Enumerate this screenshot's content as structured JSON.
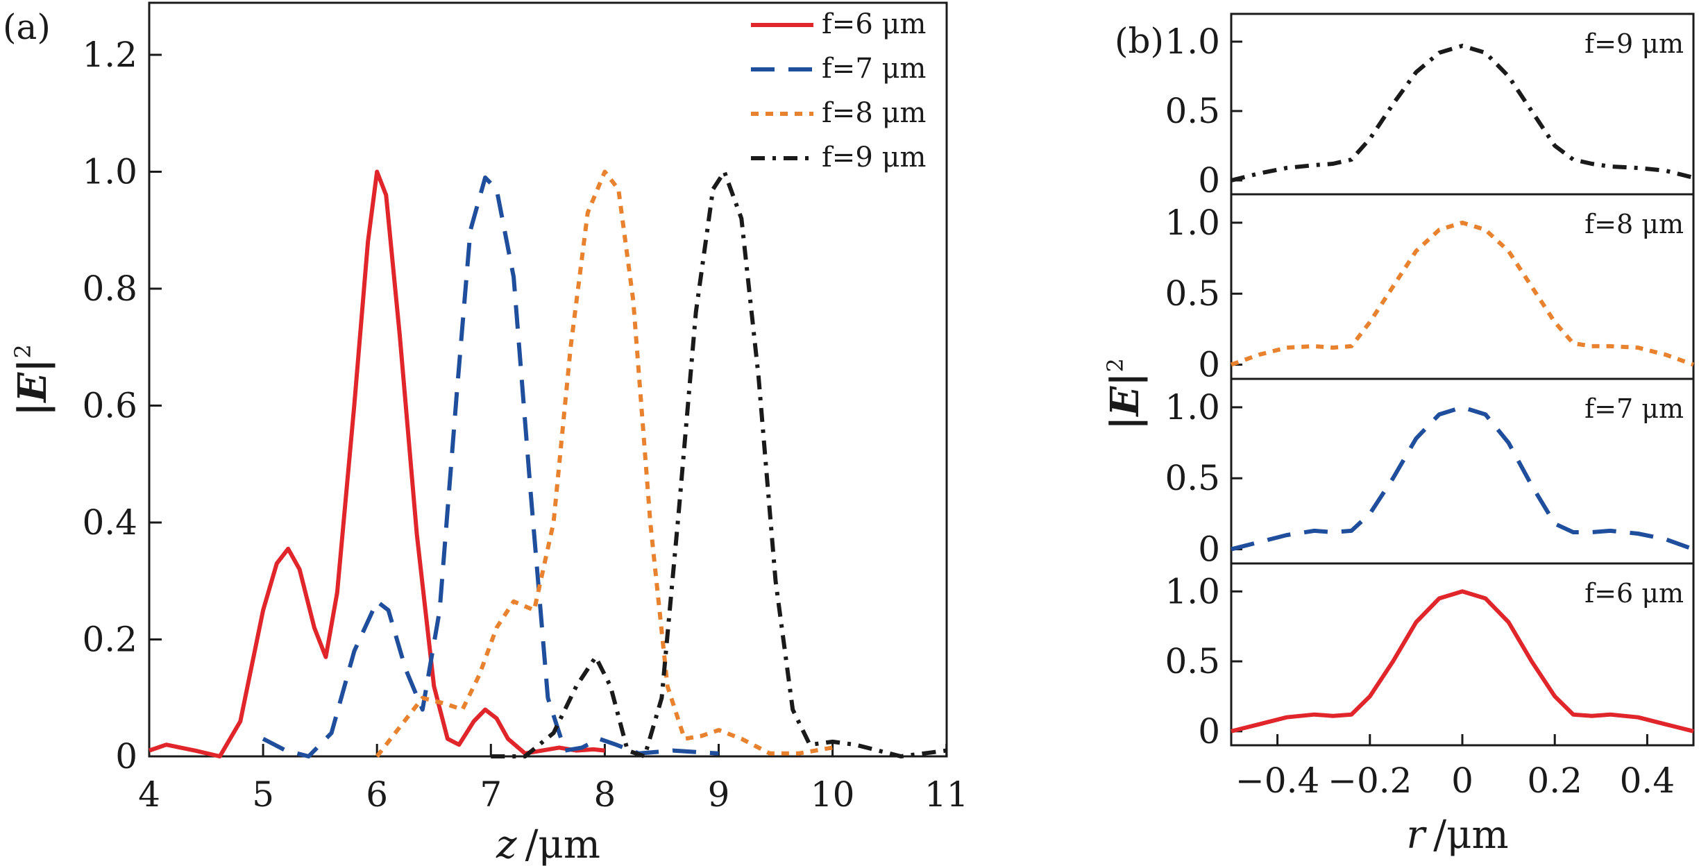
{
  "chart_data": [
    {
      "panel_label": "(a)",
      "type": "line",
      "xlabel_var": "z",
      "xlabel_unit": "/μm",
      "ylabel_main": "|E|",
      "ylabel_sup": "2",
      "xlim": [
        4,
        11
      ],
      "ylim": [
        0,
        1.3
      ],
      "xticks": [
        "4",
        "5",
        "6",
        "7",
        "8",
        "9",
        "10",
        "11"
      ],
      "yticks": [
        "0",
        "0.2",
        "0.4",
        "0.6",
        "0.8",
        "1.0",
        "1.2"
      ],
      "legend_position": "top-right",
      "series": [
        {
          "name": "f=6 μm",
          "color": "#e0262b",
          "style": "solid",
          "x": [
            4.0,
            4.15,
            4.4,
            4.62,
            4.8,
            5.0,
            5.12,
            5.22,
            5.32,
            5.45,
            5.55,
            5.65,
            5.8,
            5.92,
            6.0,
            6.08,
            6.2,
            6.35,
            6.5,
            6.62,
            6.72,
            6.85,
            6.95,
            7.05,
            7.15,
            7.3,
            7.45,
            7.6,
            7.75,
            7.9,
            8.0
          ],
          "y": [
            0.01,
            0.02,
            0.01,
            0.0,
            0.06,
            0.25,
            0.33,
            0.355,
            0.32,
            0.22,
            0.17,
            0.28,
            0.6,
            0.88,
            1.0,
            0.96,
            0.72,
            0.38,
            0.12,
            0.03,
            0.02,
            0.06,
            0.08,
            0.065,
            0.03,
            0.005,
            0.01,
            0.015,
            0.01,
            0.012,
            0.01
          ]
        },
        {
          "name": "f=7 μm",
          "color": "#1f4e9c",
          "style": "dash",
          "x": [
            5.0,
            5.2,
            5.4,
            5.6,
            5.8,
            6.0,
            6.1,
            6.25,
            6.4,
            6.55,
            6.7,
            6.82,
            6.95,
            7.05,
            7.2,
            7.35,
            7.5,
            7.65,
            7.8,
            7.95,
            8.1,
            8.3,
            8.6,
            9.0
          ],
          "y": [
            0.03,
            0.01,
            0.0,
            0.04,
            0.18,
            0.265,
            0.25,
            0.15,
            0.08,
            0.25,
            0.62,
            0.9,
            0.99,
            0.97,
            0.82,
            0.45,
            0.1,
            0.01,
            0.015,
            0.03,
            0.02,
            0.005,
            0.01,
            0.005
          ]
        },
        {
          "name": "f=8 μm",
          "color": "#e9822e",
          "style": "dot",
          "x": [
            6.0,
            6.2,
            6.4,
            6.6,
            6.75,
            6.9,
            7.05,
            7.2,
            7.38,
            7.55,
            7.7,
            7.85,
            8.0,
            8.12,
            8.25,
            8.4,
            8.55,
            8.7,
            8.85,
            9.0,
            9.2,
            9.45,
            9.7,
            10.0
          ],
          "y": [
            0.0,
            0.05,
            0.1,
            0.09,
            0.08,
            0.14,
            0.22,
            0.265,
            0.25,
            0.4,
            0.7,
            0.93,
            1.0,
            0.97,
            0.78,
            0.4,
            0.12,
            0.03,
            0.035,
            0.045,
            0.03,
            0.005,
            0.005,
            0.015
          ]
        },
        {
          "name": "f=9 μm",
          "color": "#1a1a1a",
          "style": "dashdot",
          "x": [
            7.0,
            7.3,
            7.55,
            7.75,
            7.92,
            8.05,
            8.2,
            8.35,
            8.5,
            8.65,
            8.8,
            8.95,
            9.05,
            9.2,
            9.35,
            9.5,
            9.65,
            9.8,
            10.0,
            10.2,
            10.4,
            10.6,
            10.8,
            11.0
          ],
          "y": [
            0.0,
            0.0,
            0.04,
            0.12,
            0.17,
            0.12,
            0.01,
            0.0,
            0.1,
            0.42,
            0.76,
            0.97,
            1.0,
            0.92,
            0.65,
            0.3,
            0.08,
            0.02,
            0.025,
            0.02,
            0.01,
            0.0,
            0.005,
            0.01
          ]
        }
      ]
    },
    {
      "panel_label": "(b)",
      "type": "line",
      "xlabel_var": "r",
      "xlabel_unit": "/μm",
      "ylabel_main": "|E|",
      "ylabel_sup": "2",
      "xlim": [
        -0.5,
        0.5
      ],
      "xticks": [
        "−0.4",
        "−0.2",
        "0",
        "0.2",
        "0.4"
      ],
      "subplots": [
        {
          "label": "f=9 μm",
          "color": "#1a1a1a",
          "style": "dashdot",
          "ylim": [
            -0.1,
            1.2
          ],
          "yticks": [
            "0",
            "0.5",
            "1.0"
          ],
          "x": [
            -0.5,
            -0.44,
            -0.38,
            -0.32,
            -0.28,
            -0.24,
            -0.2,
            -0.15,
            -0.1,
            -0.05,
            0.0,
            0.05,
            0.1,
            0.15,
            0.2,
            0.24,
            0.28,
            0.32,
            0.38,
            0.44,
            0.5
          ],
          "y": [
            0.0,
            0.05,
            0.09,
            0.11,
            0.12,
            0.15,
            0.3,
            0.55,
            0.78,
            0.92,
            0.97,
            0.92,
            0.75,
            0.5,
            0.25,
            0.15,
            0.12,
            0.1,
            0.09,
            0.07,
            0.02
          ]
        },
        {
          "label": "f=8 μm",
          "color": "#e9822e",
          "style": "dot",
          "ylim": [
            -0.1,
            1.2
          ],
          "yticks": [
            "0",
            "0.5",
            "1.0"
          ],
          "x": [
            -0.5,
            -0.44,
            -0.38,
            -0.32,
            -0.28,
            -0.24,
            -0.2,
            -0.15,
            -0.1,
            -0.05,
            0.0,
            0.05,
            0.1,
            0.15,
            0.2,
            0.24,
            0.28,
            0.32,
            0.38,
            0.44,
            0.5
          ],
          "y": [
            0.0,
            0.07,
            0.12,
            0.13,
            0.12,
            0.13,
            0.3,
            0.55,
            0.8,
            0.95,
            1.0,
            0.95,
            0.8,
            0.55,
            0.3,
            0.15,
            0.13,
            0.13,
            0.12,
            0.07,
            0.0
          ]
        },
        {
          "label": "f=7 μm",
          "color": "#1f4e9c",
          "style": "dash",
          "ylim": [
            -0.1,
            1.2
          ],
          "yticks": [
            "0",
            "0.5",
            "1.0"
          ],
          "x": [
            -0.5,
            -0.44,
            -0.38,
            -0.32,
            -0.28,
            -0.24,
            -0.2,
            -0.15,
            -0.1,
            -0.05,
            0.0,
            0.05,
            0.1,
            0.15,
            0.2,
            0.24,
            0.28,
            0.32,
            0.38,
            0.44,
            0.5
          ],
          "y": [
            0.0,
            0.05,
            0.1,
            0.13,
            0.12,
            0.13,
            0.25,
            0.5,
            0.78,
            0.95,
            1.0,
            0.95,
            0.75,
            0.45,
            0.18,
            0.12,
            0.12,
            0.13,
            0.11,
            0.07,
            0.0
          ]
        },
        {
          "label": "f=6 μm",
          "color": "#e0262b",
          "style": "solid",
          "ylim": [
            -0.1,
            1.2
          ],
          "yticks": [
            "0",
            "0.5",
            "1.0"
          ],
          "x": [
            -0.5,
            -0.44,
            -0.38,
            -0.32,
            -0.28,
            -0.24,
            -0.2,
            -0.15,
            -0.1,
            -0.05,
            0.0,
            0.05,
            0.1,
            0.15,
            0.2,
            0.24,
            0.28,
            0.32,
            0.38,
            0.44,
            0.5
          ],
          "y": [
            0.0,
            0.05,
            0.1,
            0.12,
            0.11,
            0.12,
            0.25,
            0.5,
            0.78,
            0.95,
            1.0,
            0.95,
            0.78,
            0.5,
            0.25,
            0.12,
            0.11,
            0.12,
            0.1,
            0.05,
            0.0
          ]
        }
      ]
    }
  ]
}
